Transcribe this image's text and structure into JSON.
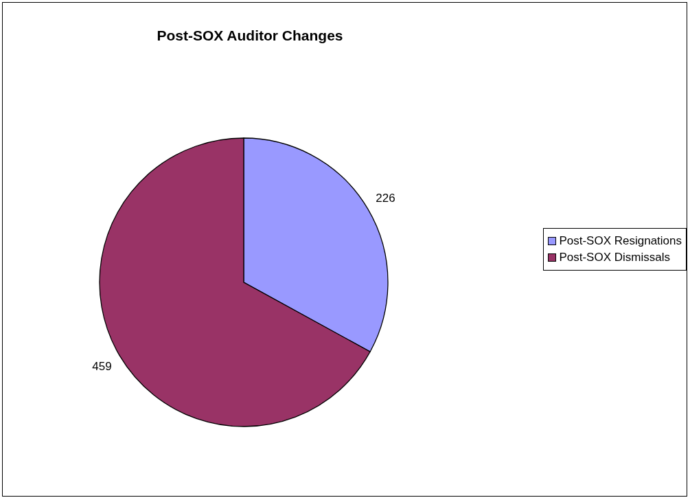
{
  "chart_data": {
    "type": "pie",
    "title": "Post-SOX Auditor Changes",
    "categories": [
      "Post-SOX Resignations",
      "Post-SOX Dismissals"
    ],
    "values": [
      226,
      459
    ],
    "colors": [
      "#9999ff",
      "#993366"
    ],
    "data_labels": true,
    "legend": "right"
  }
}
